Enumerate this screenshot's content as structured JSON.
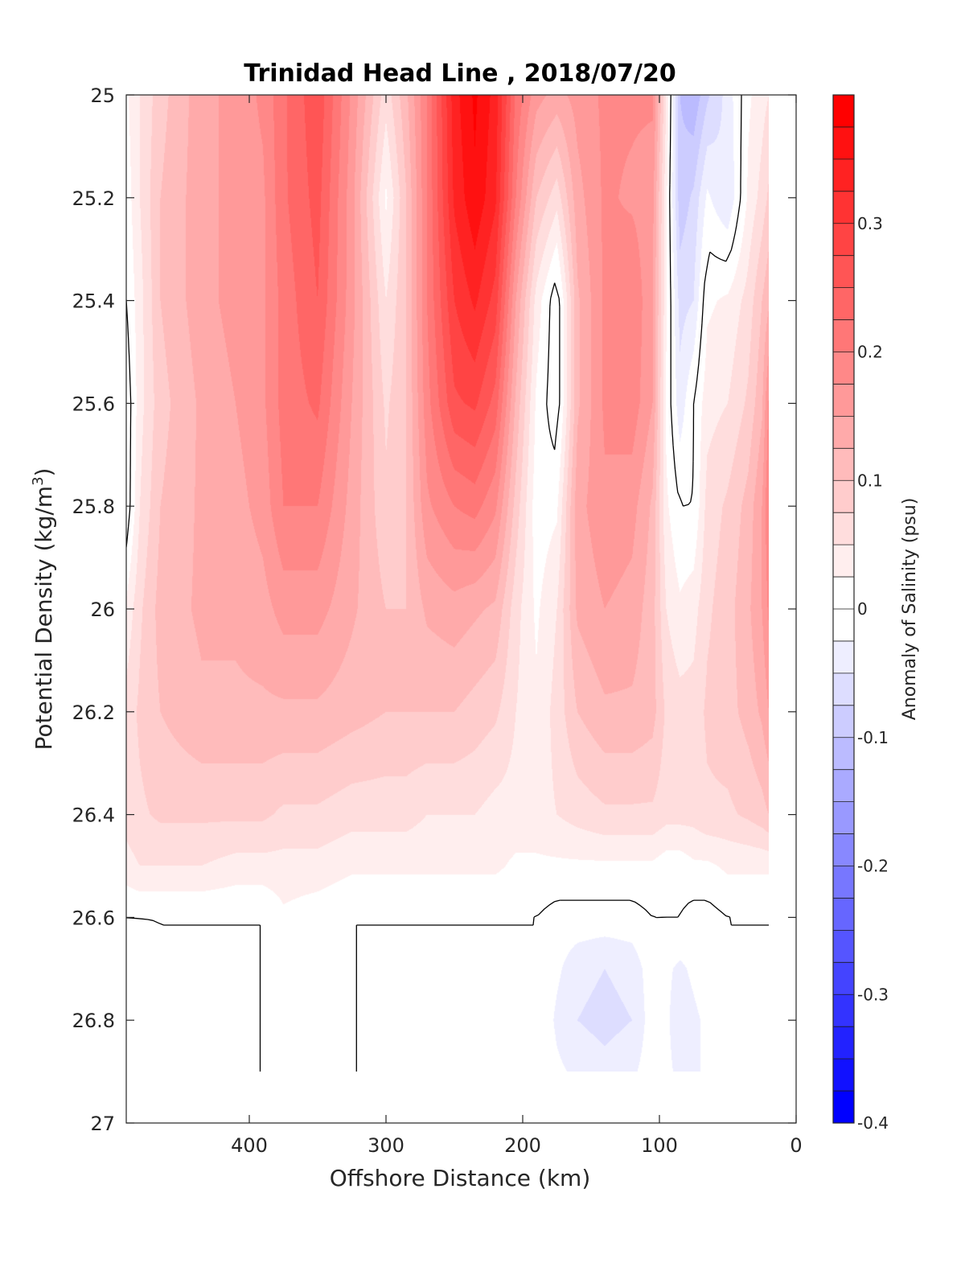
{
  "chart_data": {
    "type": "heatmap",
    "title": "Trinidad Head Line , 2018/07/20",
    "xlabel": "Offshore Distance (km)",
    "ylabel_main": "Potential Density (kg/m",
    "ylabel_sup": "3",
    "ylabel_tail": ")",
    "xlim": [
      490,
      0
    ],
    "ylim": [
      25,
      27
    ],
    "x_reversed": true,
    "y_reversed": true,
    "x_ticks": [
      400,
      300,
      200,
      100,
      0
    ],
    "y_ticks": [
      25,
      25.2,
      25.4,
      25.6,
      25.8,
      26,
      26.2,
      26.4,
      26.6,
      26.8,
      27
    ],
    "colorbar": {
      "label": "Anomaly of Salinity (psu)",
      "range": [
        -0.4,
        0.4
      ],
      "step": 0.025,
      "ticks": [
        0.3,
        0.2,
        0.1,
        0,
        -0.1,
        -0.2,
        -0.3,
        -0.4
      ],
      "neg_color": "#0000ff",
      "zero_color": "#ffffff",
      "pos_color": "#ff0000"
    },
    "data_extent": {
      "x_min": 20,
      "x_max": 490,
      "y_min": 25,
      "y_max": 26.9
    },
    "sigma_grid": [
      25.0,
      25.2,
      25.4,
      25.6,
      25.8,
      26.0,
      26.2,
      26.4,
      26.5,
      26.6,
      26.7,
      26.8,
      26.9
    ],
    "distance_grid": [
      490,
      480,
      465,
      435,
      410,
      390,
      375,
      350,
      325,
      300,
      285,
      270,
      250,
      235,
      220,
      205,
      190,
      175,
      160,
      140,
      120,
      105,
      95,
      85,
      75,
      65,
      50,
      35,
      25,
      20
    ],
    "anomaly_values": [
      [
        0.02,
        0.05,
        0.09,
        0.14,
        0.16,
        0.18,
        0.22,
        0.27,
        0.17,
        0.06,
        0.12,
        0.2,
        0.34,
        0.38,
        0.34,
        0.22,
        0.16,
        0.14,
        0.16,
        0.18,
        0.18,
        0.18,
        0.05,
        -0.1,
        -0.12,
        -0.08,
        -0.04,
        0.02,
        0.04,
        0.05
      ],
      [
        0.01,
        0.05,
        0.1,
        0.14,
        0.16,
        0.17,
        0.22,
        0.26,
        0.16,
        0.02,
        0.1,
        0.2,
        0.33,
        0.37,
        0.33,
        0.2,
        0.1,
        0.06,
        0.14,
        0.18,
        0.17,
        0.16,
        0.03,
        -0.09,
        -0.07,
        -0.02,
        -0.05,
        0.03,
        0.06,
        0.08
      ],
      [
        0.0,
        0.04,
        0.1,
        0.14,
        0.16,
        0.17,
        0.21,
        0.25,
        0.16,
        0.05,
        0.1,
        0.2,
        0.3,
        0.33,
        0.29,
        0.15,
        0.04,
        -0.02,
        0.12,
        0.18,
        0.2,
        0.15,
        0.03,
        -0.06,
        -0.05,
        0.02,
        0.03,
        0.06,
        0.1,
        0.12
      ],
      [
        -0.02,
        0.04,
        0.09,
        0.13,
        0.15,
        0.17,
        0.21,
        0.23,
        0.15,
        0.07,
        0.1,
        0.19,
        0.27,
        0.28,
        0.24,
        0.12,
        0.02,
        -0.02,
        0.12,
        0.18,
        0.19,
        0.15,
        0.02,
        -0.04,
        0.0,
        0.04,
        0.05,
        0.08,
        0.12,
        0.18
      ],
      [
        -0.02,
        0.05,
        0.1,
        0.13,
        0.14,
        0.16,
        0.2,
        0.2,
        0.14,
        0.08,
        0.1,
        0.17,
        0.2,
        0.21,
        0.18,
        0.09,
        0.01,
        0.02,
        0.14,
        0.17,
        0.16,
        0.12,
        0.03,
        0.0,
        0.0,
        0.06,
        0.08,
        0.11,
        0.15,
        0.2
      ],
      [
        0.03,
        0.07,
        0.11,
        0.13,
        0.13,
        0.14,
        0.16,
        0.16,
        0.13,
        0.1,
        0.1,
        0.13,
        0.14,
        0.13,
        0.12,
        0.06,
        0.02,
        0.05,
        0.13,
        0.15,
        0.14,
        0.11,
        0.05,
        0.03,
        0.04,
        0.07,
        0.09,
        0.12,
        0.15,
        0.18
      ],
      [
        0.06,
        0.08,
        0.1,
        0.12,
        0.12,
        0.12,
        0.12,
        0.12,
        0.11,
        0.1,
        0.1,
        0.1,
        0.1,
        0.09,
        0.08,
        0.05,
        0.03,
        0.06,
        0.1,
        0.12,
        0.12,
        0.11,
        0.07,
        0.06,
        0.06,
        0.08,
        0.09,
        0.11,
        0.13,
        0.15
      ],
      [
        0.06,
        0.07,
        0.08,
        0.08,
        0.08,
        0.08,
        0.07,
        0.07,
        0.06,
        0.06,
        0.06,
        0.05,
        0.05,
        0.05,
        0.04,
        0.04,
        0.04,
        0.05,
        0.06,
        0.07,
        0.07,
        0.07,
        0.06,
        0.06,
        0.06,
        0.07,
        0.07,
        0.08,
        0.09,
        0.1
      ],
      [
        0.04,
        0.05,
        0.05,
        0.05,
        0.04,
        0.04,
        0.04,
        0.04,
        0.03,
        0.03,
        0.03,
        0.03,
        0.03,
        0.03,
        0.03,
        0.02,
        0.02,
        0.02,
        0.02,
        0.02,
        0.02,
        0.02,
        0.01,
        0.01,
        0.02,
        0.02,
        0.03,
        0.03,
        0.03,
        0.03
      ],
      [
        0.0,
        0.0,
        0.0,
        0.0,
        0.0,
        0.0,
        0.02,
        0.01,
        0.0,
        0.0,
        0.0,
        0.0,
        0.0,
        0.0,
        0.0,
        0.0,
        0.0,
        -0.01,
        -0.01,
        -0.01,
        -0.01,
        0.0,
        0.0,
        0.0,
        -0.01,
        -0.01,
        0.0,
        0.0,
        0.0,
        0.0
      ],
      [
        -0.02,
        -0.01,
        0.0,
        0.0,
        0.0,
        0.0,
        0.02,
        0.02,
        0.0,
        0.0,
        0.0,
        0.0,
        0.0,
        0.0,
        0.0,
        0.0,
        0.0,
        -0.02,
        -0.04,
        -0.05,
        -0.04,
        -0.01,
        -0.02,
        -0.03,
        -0.02,
        -0.01,
        0.0,
        0.0,
        0.0,
        0.0
      ],
      [
        -0.02,
        -0.02,
        0.0,
        0.0,
        0.0,
        0.0,
        0.02,
        0.02,
        0.0,
        0.0,
        0.0,
        0.0,
        0.0,
        0.0,
        0.0,
        0.0,
        0.0,
        -0.03,
        -0.05,
        -0.06,
        -0.05,
        -0.01,
        -0.02,
        -0.04,
        -0.03,
        -0.02,
        -0.02,
        -0.01,
        0.0,
        0.0
      ],
      [
        -0.01,
        0.0,
        0.0,
        0.0,
        0.0,
        0.0,
        0.02,
        0.02,
        0.0,
        0.0,
        0.0,
        0.0,
        0.0,
        0.0,
        0.0,
        0.0,
        0.0,
        -0.02,
        -0.03,
        -0.04,
        -0.03,
        -0.01,
        -0.02,
        -0.03,
        -0.03,
        -0.02,
        -0.02,
        -0.01,
        0.0,
        0.0
      ]
    ]
  }
}
